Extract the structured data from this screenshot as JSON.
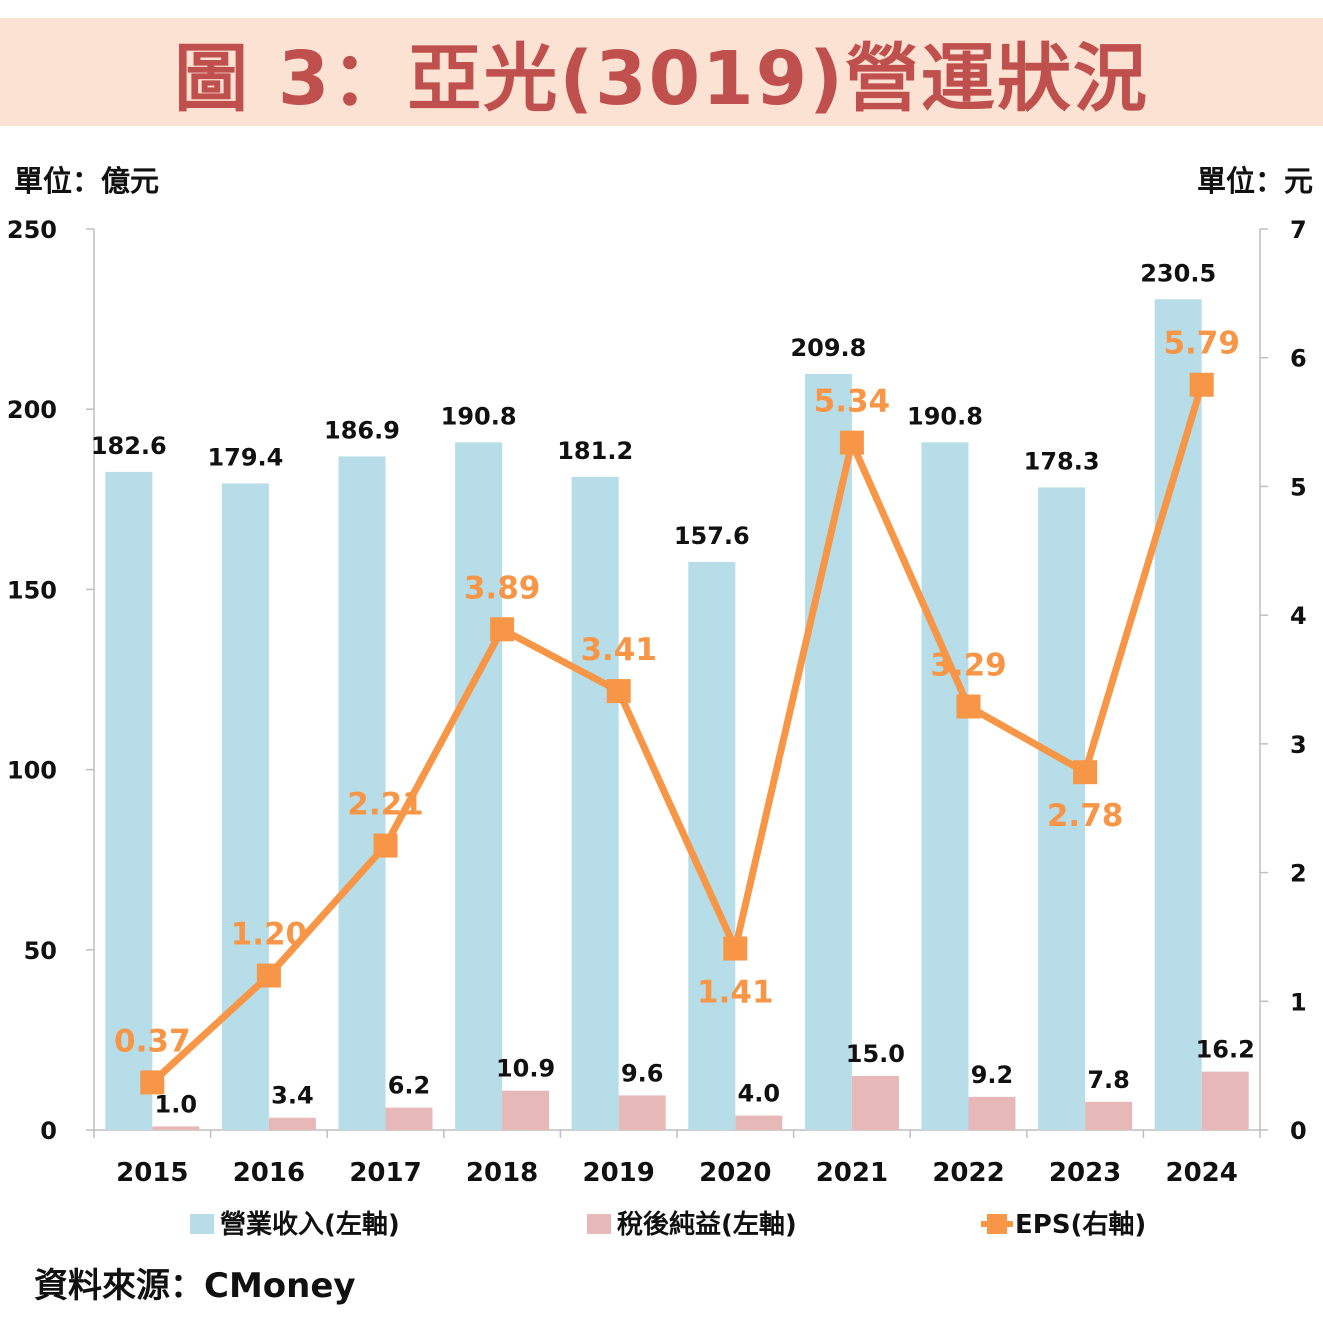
{
  "title": "圖 3：亞光(3019)營運狀況",
  "unit_left": "單位：億元",
  "unit_right": "單位：元",
  "source": "資料來源：CMoney",
  "colors": {
    "revenue": "#b7dde8",
    "net_income": "#e6b9b8",
    "eps": "#f79646",
    "title": "#c0504d",
    "banner": "#fbe2d2"
  },
  "chart_data": {
    "type": "bar+line",
    "categories": [
      "2015",
      "2016",
      "2017",
      "2018",
      "2019",
      "2020",
      "2021",
      "2022",
      "2023",
      "2024"
    ],
    "series": [
      {
        "name": "營業收入(左軸)",
        "type": "bar",
        "axis": "left",
        "values": [
          182.6,
          179.4,
          186.9,
          190.8,
          181.2,
          157.6,
          209.8,
          190.8,
          178.3,
          230.5
        ],
        "labels": [
          "182.6",
          "179.4",
          "186.9",
          "190.8",
          "181.2",
          "157.6",
          "209.8",
          "190.8",
          "178.3",
          "230.5"
        ]
      },
      {
        "name": "稅後純益(左軸)",
        "type": "bar",
        "axis": "left",
        "values": [
          1.0,
          3.4,
          6.2,
          10.9,
          9.6,
          4.0,
          15.0,
          9.2,
          7.8,
          16.2
        ],
        "labels": [
          "1.0",
          "3.4",
          "6.2",
          "10.9",
          "9.6",
          "4.0",
          "15.0",
          "9.2",
          "7.8",
          "16.2"
        ]
      },
      {
        "name": "EPS(右軸)",
        "type": "line",
        "axis": "right",
        "values": [
          0.37,
          1.2,
          2.21,
          3.89,
          3.41,
          1.41,
          5.34,
          3.29,
          2.78,
          5.79
        ],
        "labels": [
          "0.37",
          "1.20",
          "2.21",
          "3.89",
          "3.41",
          "1.41",
          "5.34",
          "3.29",
          "2.78",
          "5.79"
        ]
      }
    ],
    "left_axis": {
      "min": 0,
      "max": 250,
      "ticks": [
        "0",
        "50",
        "100",
        "150",
        "200",
        "250"
      ]
    },
    "right_axis": {
      "min": 0,
      "max": 7,
      "ticks": [
        "0",
        "1",
        "2",
        "3",
        "4",
        "5",
        "6",
        "7"
      ]
    },
    "eps_label_position": [
      "above",
      "above",
      "above",
      "above",
      "above",
      "below",
      "above",
      "above",
      "below",
      "above"
    ],
    "legend_position": "bottom"
  }
}
